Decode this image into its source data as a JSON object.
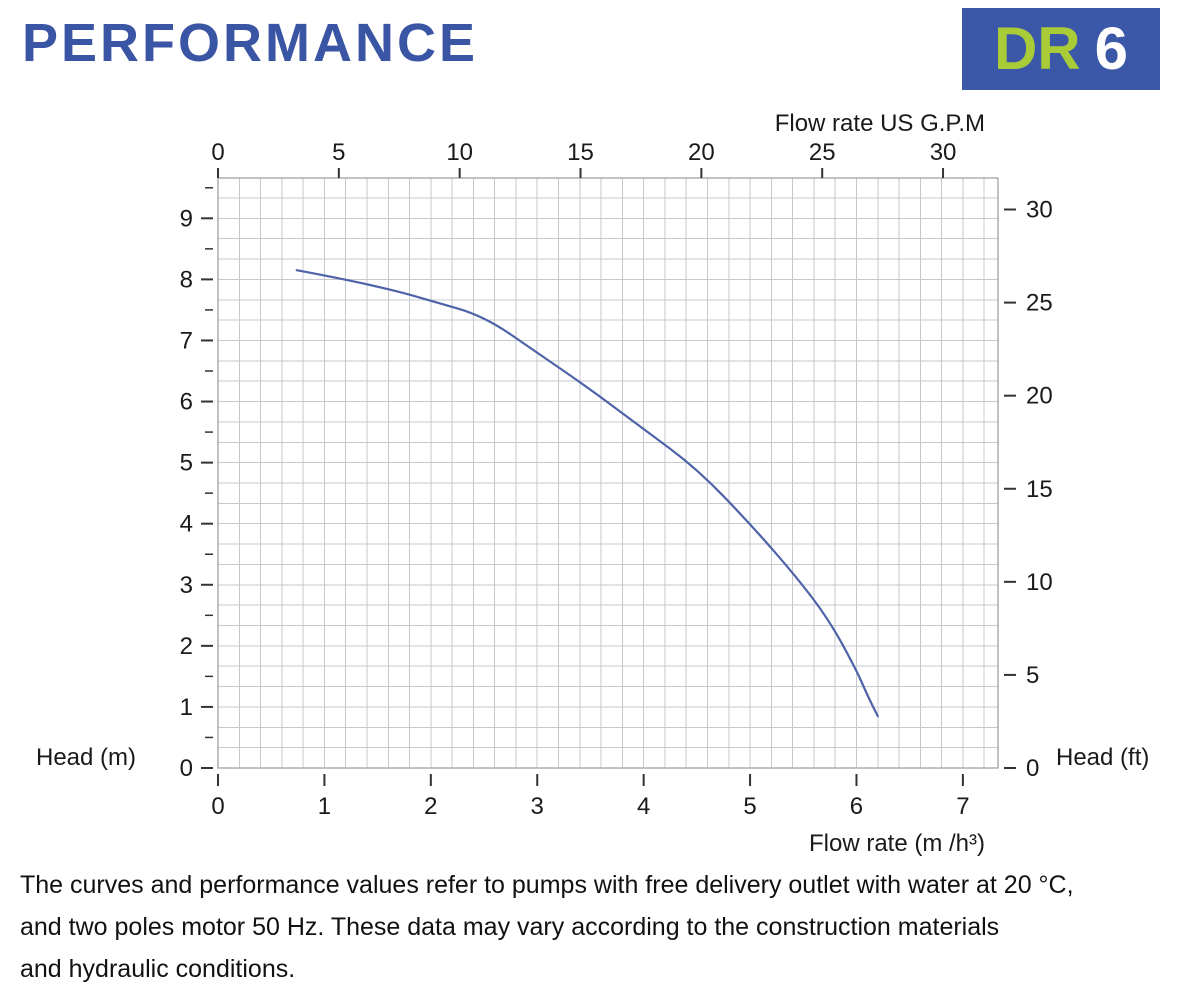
{
  "header": {
    "title": "PERFORMANCE",
    "badge": {
      "series": "DR",
      "size": "6",
      "bg_color": "#3a57a8",
      "series_color": "#a9cb37",
      "size_color": "#ffffff"
    }
  },
  "chart_data": {
    "type": "line",
    "title": "",
    "axes": {
      "top": {
        "label": "Flow rate US G.P.M",
        "unit": "US GPM",
        "ticks": [
          0,
          5,
          10,
          15,
          20,
          25,
          30
        ],
        "to_primary_factor": 0.22712
      },
      "bottom": {
        "label": "Flow rate (m /h³)",
        "unit": "m³/h",
        "ticks": [
          0,
          1,
          2,
          3,
          4,
          5,
          6,
          7
        ],
        "range": [
          0,
          7.33
        ]
      },
      "left": {
        "label": "Head (m)",
        "unit": "m",
        "ticks": [
          0,
          1,
          2,
          3,
          4,
          5,
          6,
          7,
          8,
          9
        ],
        "minor_tick_step": 0.5,
        "range": [
          0,
          9.66
        ]
      },
      "right": {
        "label": "Head (ft)",
        "unit": "ft",
        "ticks": [
          0,
          5,
          10,
          15,
          20,
          25,
          30
        ],
        "to_primary_factor": 0.3048
      }
    },
    "grid": {
      "show": true,
      "x_step": 0.2,
      "y_step": 0.33333
    },
    "series": [
      {
        "name": "DR 6 head-flow curve",
        "color": "#4f63a8",
        "points": [
          [
            0.74,
            8.15
          ],
          [
            1.2,
            8.0
          ],
          [
            1.7,
            7.8
          ],
          [
            2.0,
            7.65
          ],
          [
            2.5,
            7.4
          ],
          [
            3.0,
            6.8
          ],
          [
            3.5,
            6.2
          ],
          [
            4.0,
            5.55
          ],
          [
            4.5,
            4.9
          ],
          [
            5.0,
            4.0
          ],
          [
            5.45,
            3.1
          ],
          [
            5.75,
            2.4
          ],
          [
            6.0,
            1.6
          ],
          [
            6.1,
            1.2
          ],
          [
            6.2,
            0.85
          ]
        ]
      }
    ],
    "colors": {
      "grid": "#c6c9cc",
      "border": "#9b9b9b",
      "tick": "#333333",
      "text": "#1a1a1a"
    }
  },
  "footnote": {
    "lines": [
      "The curves and performance values refer to pumps with free delivery outlet with water at 20 °C,",
      "and two poles motor 50 Hz. These data may vary according to the construction materials",
      "and hydraulic conditions."
    ]
  }
}
